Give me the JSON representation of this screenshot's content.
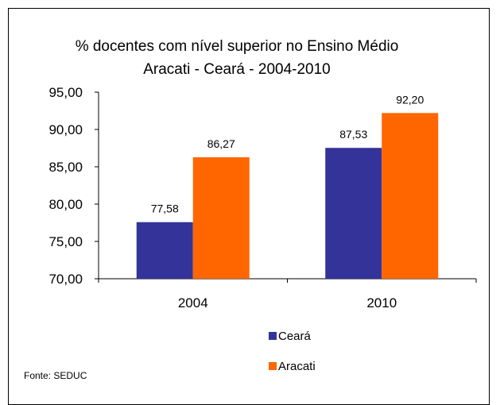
{
  "chart_data": {
    "type": "bar",
    "title": "% docentes com nível  superior no Ensino Médio",
    "subtitle": "Aracati  -  Ceará - 2004-2010",
    "categories": [
      "2004",
      "2010"
    ],
    "series": [
      {
        "name": "Ceará",
        "values": [
          77.58,
          87.53
        ],
        "labels": [
          "77,58",
          "87,53"
        ],
        "color": "#333399"
      },
      {
        "name": "Aracati",
        "values": [
          86.27,
          92.2
        ],
        "labels": [
          "86,27",
          "92,20"
        ],
        "color": "#FF6600"
      }
    ],
    "ylim": [
      70,
      95
    ],
    "yticks": [
      70,
      75,
      80,
      85,
      90,
      95
    ],
    "ytick_labels": [
      "70,00",
      "75,00",
      "80,00",
      "85,00",
      "90,00",
      "95,00"
    ],
    "xlabel": "",
    "ylabel": "",
    "grid": false,
    "legend_position": "bottom"
  },
  "source_note": "Fonte: SEDUC"
}
